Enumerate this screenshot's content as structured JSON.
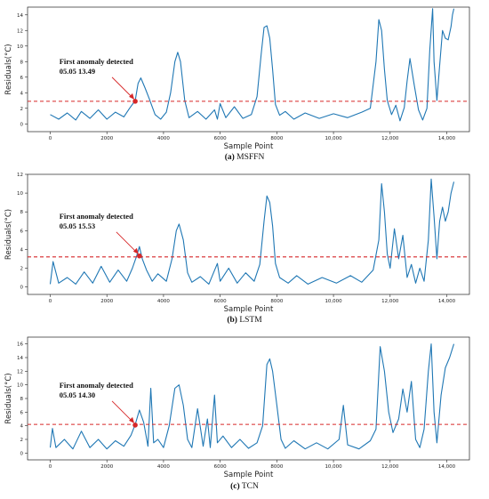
{
  "chart_data": [
    {
      "type": "line",
      "panel": "a",
      "caption_letter": "(a)",
      "caption_text": "MSFFN",
      "xlabel": "Sample Point",
      "ylabel": "Residuals(°C)",
      "xlim": [
        -800,
        14800
      ],
      "ylim": [
        -1,
        15
      ],
      "xticks": [
        0,
        2000,
        4000,
        6000,
        8000,
        10000,
        12000,
        14000
      ],
      "xtick_labels": [
        "0",
        "2000",
        "4000",
        "6000",
        "8000",
        "10,000",
        "12,000",
        "14,000"
      ],
      "yticks": [
        0,
        2,
        4,
        6,
        8,
        10,
        12,
        14
      ],
      "threshold": 2.9,
      "threshold_color": "#d62728",
      "line_color": "#1f77b4",
      "annotation": {
        "line1": "First anomaly detected",
        "line2": "05.05 13.49",
        "point_x": 3000,
        "point_y": 2.9
      },
      "series": [
        {
          "x": [
            0,
            300,
            600,
            900,
            1100,
            1400,
            1700,
            2000,
            2300,
            2600,
            2800,
            3000,
            3100,
            3200,
            3350,
            3500,
            3700,
            3900,
            4100,
            4250,
            4400,
            4500,
            4600,
            4750,
            4900,
            5200,
            5500,
            5800,
            5900,
            6000,
            6200,
            6500,
            6800,
            7100,
            7300,
            7450,
            7550,
            7650,
            7750,
            7850,
            7950,
            8100,
            8300,
            8600,
            9000,
            9500,
            10000,
            10500,
            11000,
            11300,
            11500,
            11600,
            11700,
            11800,
            11900,
            12050,
            12200,
            12350,
            12500,
            12600,
            12700,
            12850,
            13000,
            13150,
            13300,
            13400,
            13500,
            13550,
            13650,
            13750,
            13850,
            13950,
            14050,
            14150,
            14200,
            14250
          ],
          "y": [
            1.2,
            0.6,
            1.4,
            0.5,
            1.6,
            0.7,
            1.8,
            0.6,
            1.5,
            0.9,
            2.0,
            3.0,
            5.2,
            5.9,
            4.6,
            3.2,
            1.2,
            0.6,
            1.5,
            4.0,
            8.0,
            9.2,
            8.0,
            3.0,
            0.8,
            1.6,
            0.6,
            1.8,
            0.6,
            2.6,
            0.8,
            2.2,
            0.7,
            1.2,
            3.5,
            9.0,
            12.4,
            12.6,
            11.0,
            7.0,
            2.5,
            1.1,
            1.6,
            0.6,
            1.4,
            0.7,
            1.3,
            0.8,
            1.5,
            2.0,
            8.0,
            13.4,
            12.0,
            7.0,
            3.0,
            1.2,
            2.4,
            0.4,
            2.1,
            5.5,
            8.4,
            5.0,
            1.8,
            0.5,
            2.0,
            9.5,
            14.8,
            8.0,
            3.0,
            7.5,
            12.0,
            11.0,
            10.8,
            12.5,
            14.0,
            14.8
          ]
        }
      ]
    },
    {
      "type": "line",
      "panel": "b",
      "caption_letter": "(b)",
      "caption_text": "LSTM",
      "xlabel": "Sample Point",
      "ylabel": "Residuals(°C)",
      "xlim": [
        -800,
        14800
      ],
      "ylim": [
        -0.8,
        12
      ],
      "xticks": [
        0,
        2000,
        4000,
        6000,
        8000,
        10000,
        12000,
        14000
      ],
      "xtick_labels": [
        "0",
        "2000",
        "4000",
        "6000",
        "8000",
        "10,000",
        "12,000",
        "14,000"
      ],
      "yticks": [
        0,
        2,
        4,
        6,
        8,
        10,
        12
      ],
      "threshold": 3.2,
      "threshold_color": "#d62728",
      "line_color": "#1f77b4",
      "annotation": {
        "line1": "First anomaly detected",
        "line2": "05.05 15.53",
        "point_x": 3150,
        "point_y": 3.3
      },
      "series": [
        {
          "x": [
            0,
            100,
            300,
            600,
            900,
            1200,
            1500,
            1800,
            2100,
            2400,
            2700,
            2900,
            3050,
            3150,
            3250,
            3400,
            3600,
            3800,
            4100,
            4300,
            4450,
            4550,
            4700,
            4850,
            5000,
            5300,
            5600,
            5900,
            6000,
            6300,
            6600,
            6900,
            7200,
            7400,
            7550,
            7650,
            7750,
            7850,
            7950,
            8100,
            8400,
            8700,
            9100,
            9600,
            10100,
            10600,
            11000,
            11400,
            11600,
            11700,
            11800,
            11900,
            12000,
            12150,
            12300,
            12450,
            12600,
            12750,
            12900,
            13050,
            13200,
            13350,
            13450,
            13550,
            13650,
            13750,
            13850,
            13950,
            14050,
            14150,
            14250
          ],
          "y": [
            0.3,
            2.7,
            0.4,
            1.0,
            0.3,
            1.6,
            0.4,
            2.2,
            0.5,
            1.8,
            0.6,
            2.0,
            3.3,
            4.3,
            3.0,
            1.8,
            0.6,
            1.4,
            0.6,
            3.0,
            6.0,
            6.7,
            5.0,
            1.5,
            0.5,
            1.1,
            0.3,
            2.5,
            0.6,
            2.0,
            0.4,
            1.5,
            0.6,
            2.4,
            7.0,
            9.7,
            9.0,
            6.5,
            2.5,
            1.0,
            0.4,
            1.2,
            0.3,
            1.0,
            0.4,
            1.2,
            0.5,
            1.8,
            5.0,
            11.0,
            8.0,
            3.5,
            2.0,
            6.2,
            3.0,
            5.5,
            1.0,
            2.4,
            0.4,
            2.0,
            0.6,
            5.0,
            11.5,
            7.5,
            3.0,
            7.0,
            8.5,
            7.0,
            8.0,
            10.0,
            11.2
          ]
        }
      ]
    },
    {
      "type": "line",
      "panel": "c",
      "caption_letter": "(c)",
      "caption_text": "TCN",
      "xlabel": "Sample Point",
      "ylabel": "Residuals(°C)",
      "xlim": [
        -800,
        14800
      ],
      "ylim": [
        -1,
        17
      ],
      "xticks": [
        0,
        2000,
        4000,
        6000,
        8000,
        10000,
        12000,
        14000
      ],
      "xtick_labels": [
        "0",
        "2000",
        "4000",
        "6000",
        "8000",
        "10,000",
        "12,000",
        "14,000"
      ],
      "yticks": [
        0,
        2,
        4,
        6,
        8,
        10,
        12,
        14,
        16
      ],
      "threshold": 4.2,
      "threshold_color": "#d62728",
      "line_color": "#1f77b4",
      "annotation": {
        "line1": "First anomaly detected",
        "line2": "05.05 14.30",
        "point_x": 3000,
        "point_y": 4.1
      },
      "series": [
        {
          "x": [
            0,
            80,
            200,
            500,
            800,
            1100,
            1400,
            1700,
            2000,
            2300,
            2600,
            2850,
            3000,
            3150,
            3300,
            3450,
            3550,
            3650,
            3800,
            4000,
            4200,
            4400,
            4550,
            4700,
            4850,
            5000,
            5200,
            5400,
            5550,
            5650,
            5800,
            5900,
            6100,
            6400,
            6700,
            7000,
            7300,
            7500,
            7650,
            7750,
            7850,
            8000,
            8150,
            8300,
            8600,
            9000,
            9400,
            9800,
            10200,
            10350,
            10500,
            10900,
            11300,
            11500,
            11650,
            11800,
            11950,
            12100,
            12300,
            12450,
            12600,
            12750,
            12900,
            13050,
            13200,
            13350,
            13450,
            13550,
            13650,
            13800,
            13950,
            14100,
            14250
          ],
          "y": [
            0.8,
            3.6,
            0.8,
            2.0,
            0.6,
            3.2,
            0.8,
            2.0,
            0.6,
            1.8,
            1.0,
            2.6,
            4.2,
            6.3,
            4.5,
            1.0,
            9.5,
            1.5,
            2.0,
            0.8,
            4.0,
            9.5,
            10.0,
            7.0,
            2.0,
            0.8,
            6.5,
            1.0,
            5.0,
            0.8,
            8.5,
            1.5,
            2.5,
            0.8,
            2.0,
            0.7,
            1.5,
            4.0,
            13.0,
            13.8,
            12.0,
            7.0,
            2.0,
            0.7,
            1.8,
            0.6,
            1.5,
            0.6,
            2.0,
            7.0,
            1.2,
            0.6,
            1.8,
            3.5,
            15.6,
            12.0,
            6.0,
            3.0,
            5.0,
            9.4,
            6.0,
            10.5,
            2.0,
            0.8,
            3.5,
            12.0,
            16.0,
            6.0,
            1.5,
            8.5,
            12.5,
            14.0,
            16.0
          ]
        }
      ]
    }
  ]
}
